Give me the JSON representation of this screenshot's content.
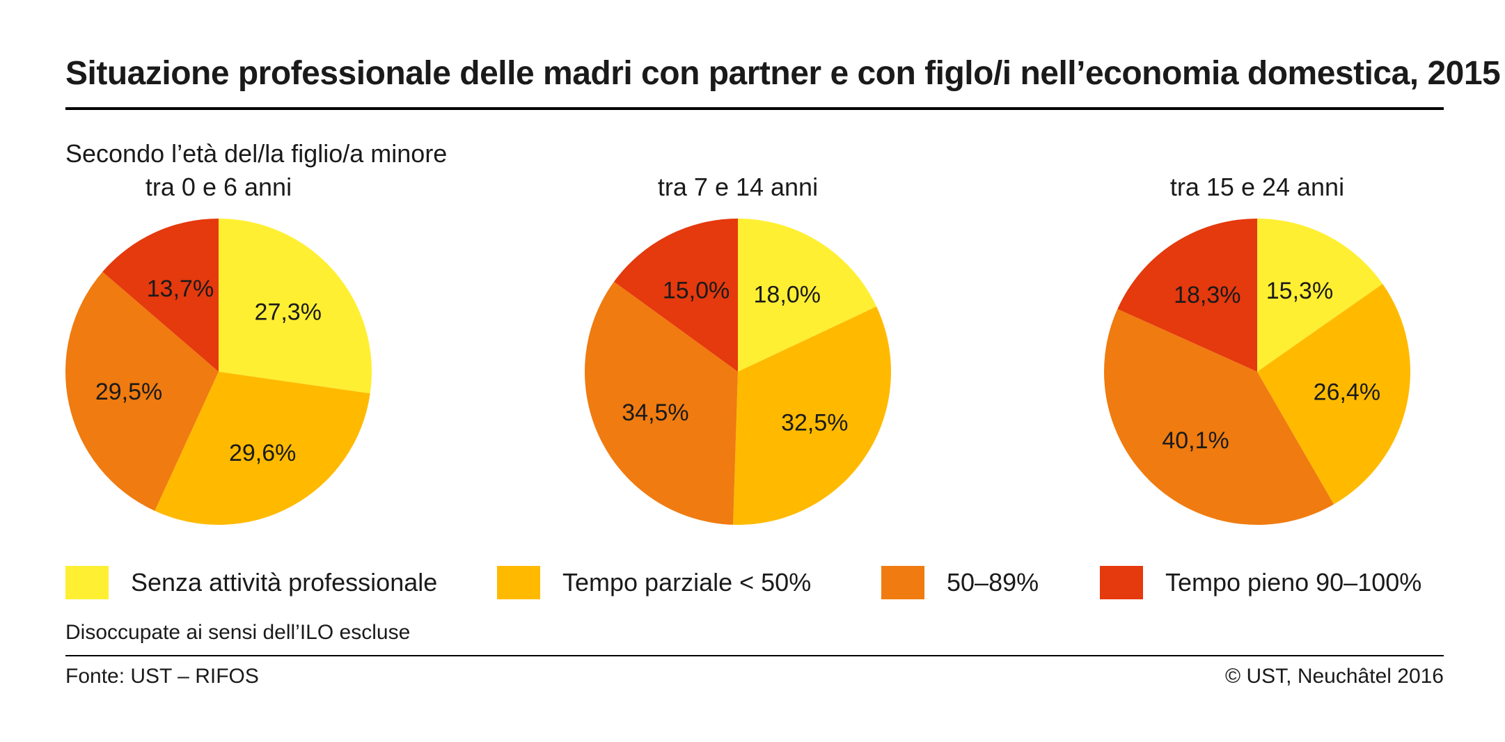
{
  "header": {
    "title": "Situazione professionale delle madri con partner e con figlo/i nell’economia domestica, 2015",
    "subtitle": "Secondo l’età del/la figlio/a minore"
  },
  "legend": [
    {
      "label": "Senza attività professionale",
      "color": "#FFEF33"
    },
    {
      "label": "Tempo parziale < 50%",
      "color": "#FFBA00"
    },
    {
      "label": "50–89%",
      "color": "#F07B10"
    },
    {
      "label": "Tempo pieno 90–100%",
      "color": "#E5390E"
    }
  ],
  "chart_data": [
    {
      "type": "pie",
      "title": "tra 0 e 6 anni",
      "categories": [
        "Senza attività professionale",
        "Tempo parziale < 50%",
        "50–89%",
        "Tempo pieno 90–100%"
      ],
      "values": [
        27.3,
        29.6,
        29.5,
        13.7
      ],
      "labels": [
        "27,3%",
        "29,6%",
        "29,5%",
        "13,7%"
      ]
    },
    {
      "type": "pie",
      "title": "tra 7 e 14 anni",
      "categories": [
        "Senza attività professionale",
        "Tempo parziale < 50%",
        "50–89%",
        "Tempo pieno 90–100%"
      ],
      "values": [
        18.0,
        32.5,
        34.5,
        15.0
      ],
      "labels": [
        "18,0%",
        "32,5%",
        "34,5%",
        "15,0%"
      ]
    },
    {
      "type": "pie",
      "title": "tra 15 e 24 anni",
      "categories": [
        "Senza attività professionale",
        "Tempo parziale < 50%",
        "50–89%",
        "Tempo pieno 90–100%"
      ],
      "values": [
        15.3,
        26.4,
        40.1,
        18.3
      ],
      "labels": [
        "15,3%",
        "26,4%",
        "40,1%",
        "18,3%"
      ]
    }
  ],
  "footer": {
    "note": "Disoccupate ai sensi dell’ILO escluse",
    "source": "Fonte: UST – RIFOS",
    "copyright": "© UST, Neuchâtel 2016"
  }
}
